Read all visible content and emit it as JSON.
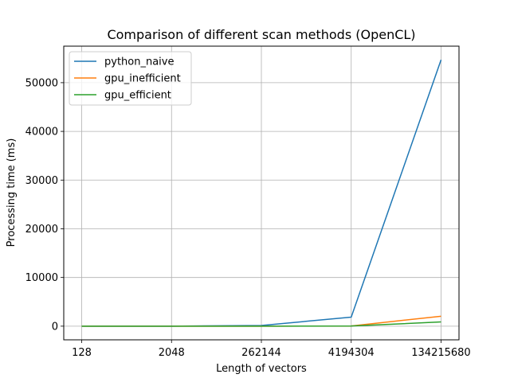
{
  "chart_data": {
    "type": "line",
    "title": "Comparison of different scan methods (OpenCL)",
    "xlabel": "Length of vectors",
    "ylabel": "Processing time (ms)",
    "categories": [
      "128",
      "2048",
      "262144",
      "4194304",
      "134215680"
    ],
    "yticks": [
      0,
      10000,
      20000,
      30000,
      40000,
      50000
    ],
    "ylim": [
      -2800,
      57500
    ],
    "grid": true,
    "legend_position": "top-left",
    "series": [
      {
        "name": "python_naive",
        "color": "#1f77b4",
        "values": [
          0.1,
          1.5,
          150,
          1850,
          54700
        ]
      },
      {
        "name": "gpu_inefficient",
        "color": "#ff7f0e",
        "values": [
          1,
          1,
          3,
          40,
          2050
        ]
      },
      {
        "name": "gpu_efficient",
        "color": "#2ca02c",
        "values": [
          1,
          1,
          2,
          30,
          870
        ]
      }
    ]
  }
}
